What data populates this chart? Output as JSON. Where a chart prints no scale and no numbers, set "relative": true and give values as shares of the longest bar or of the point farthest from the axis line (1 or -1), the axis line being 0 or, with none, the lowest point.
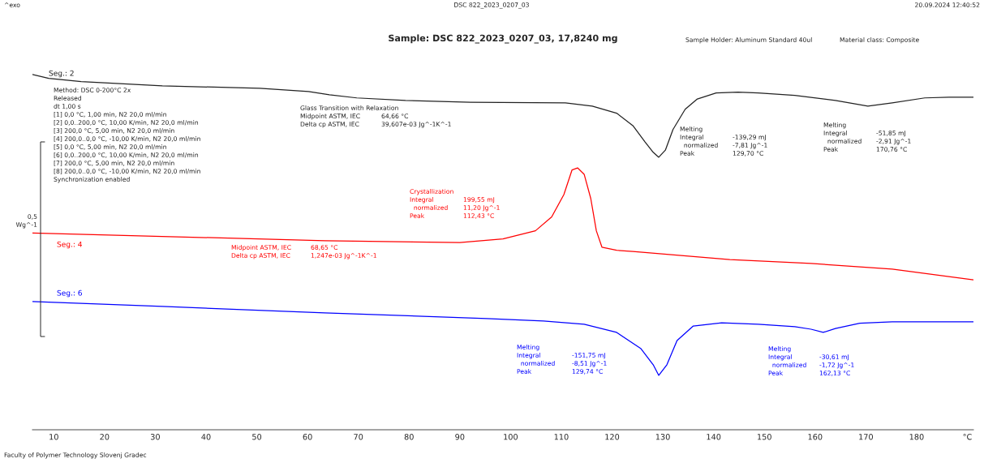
{
  "chart_data": {
    "type": "line",
    "relative": true,
    "title": "Sample: DSC 822_2023_0207_03, 17,8240 mg",
    "xlim": [
      5.8,
      191.2
    ],
    "xticks": [
      10,
      20,
      30,
      40,
      50,
      60,
      70,
      80,
      90,
      100,
      110,
      120,
      130,
      140,
      150,
      160,
      170,
      180,
      {
        "value": 190,
        "label": "°C"
      }
    ],
    "grid": false,
    "legend": false,
    "marker": "none",
    "line_style": "solid",
    "series": [
      {
        "name": "Seg.: 2",
        "color": "#222222",
        "x": [
          5.8,
          9.0,
          15.4,
          31.4,
          50.6,
          60.2,
          64.3,
          69.7,
          79.3,
          92.1,
          110.8,
          116.1,
          120.9,
          124.1,
          126.5,
          128.1,
          129.2,
          130.5,
          132.0,
          134.4,
          136.8,
          140.5,
          144.8,
          148.8,
          156.0,
          164.0,
          170.4,
          175.2,
          181.6,
          186.4,
          191.2
        ],
        "values": [
          1.0,
          0.989,
          0.98,
          0.968,
          0.961,
          0.952,
          0.943,
          0.934,
          0.927,
          0.922,
          0.92,
          0.911,
          0.891,
          0.856,
          0.81,
          0.781,
          0.767,
          0.787,
          0.845,
          0.902,
          0.931,
          0.948,
          0.95,
          0.948,
          0.941,
          0.927,
          0.911,
          0.92,
          0.934,
          0.936,
          0.936
        ]
      },
      {
        "name": "Seg.: 4",
        "color": "#ff0000",
        "x": [
          5.8,
          63.4,
          90.0,
          98.5,
          104.9,
          108.1,
          110.5,
          112.1,
          113.2,
          114.5,
          115.8,
          116.9,
          118.0,
          120.9,
          124.1,
          143.2,
          159.2,
          175.2,
          191.2
        ],
        "values": [
          0.554,
          0.532,
          0.527,
          0.537,
          0.56,
          0.599,
          0.662,
          0.731,
          0.737,
          0.719,
          0.651,
          0.56,
          0.514,
          0.505,
          0.502,
          0.479,
          0.468,
          0.452,
          0.422
        ]
      },
      {
        "name": "Seg.: 6",
        "color": "#0000ff",
        "x": [
          5.8,
          31.4,
          63.4,
          95.3,
          106.5,
          114.5,
          120.9,
          125.7,
          128.1,
          129.2,
          130.8,
          132.8,
          136.0,
          141.6,
          148.8,
          156.0,
          159.2,
          161.6,
          164.0,
          168.8,
          175.2,
          191.2
        ],
        "values": [
          0.361,
          0.347,
          0.329,
          0.313,
          0.306,
          0.297,
          0.274,
          0.228,
          0.183,
          0.153,
          0.183,
          0.251,
          0.292,
          0.301,
          0.297,
          0.29,
          0.283,
          0.274,
          0.285,
          0.3,
          0.304,
          0.304
        ]
      }
    ],
    "annotations": [
      "^exo",
      "DSC 822_2023_0207_03",
      "20.09.2024 12:40:52",
      "Sample Holder: Aluminum Standard 40ul",
      "Material class: Composite",
      "Method: DSC 0-200°C 2x\nReleased\ndt 1,00 s\n[1] 0,0 °C, 1,00 min, N2 20,0 ml/min\n[2] 0,0..200,0 °C, 10,00 K/min, N2 20,0 ml/min\n[3] 200,0 °C, 5,00 min, N2 20,0 ml/min\n[4] 200,0..0,0 °C, -10,00 K/min, N2 20,0 ml/min\n[5] 0,0 °C, 5,00 min, N2 20,0 ml/min\n[6] 0,0..200,0 °C, 10,00 K/min, N2 20,0 ml/min\n[7] 200,0 °C, 5,00 min, N2 20,0 ml/min\n[8] 200,0..0,0 °C, -10,00 K/min, N2 20,0 ml/min\nSynchronization enabled",
      "Glass Transition with Relaxation\nMidpoint ASTM, IEC\nDelta cp ASTM, IEC",
      "\n64,66 °C\n39,607e-03 Jg^-1K^-1",
      "Melting\nIntegral\n  normalized\nPeak",
      "\n-139,29 mJ\n-7,81 Jg^-1\n129,70 °C",
      "Melting\nIntegral\n  normalized\nPeak",
      "\n-51,85 mJ\n-2,91 Jg^-1\n170,76 °C",
      "Crystallization\nIntegral\n  normalized\nPeak",
      "\n199,55 mJ\n11,20 Jg^-1\n112,43 °C",
      "Midpoint ASTM, IEC\nDelta cp ASTM, IEC",
      "68,65 °C\n1,247e-03 Jg^-1K^-1",
      "Melting\nIntegral\n  normalized\nPeak",
      "\n-151,75 mJ\n-8,51 Jg^-1\n129,74 °C",
      "Melting\nIntegral\n  normalized\nPeak",
      "\n-30,61 mJ\n-1,72 Jg^-1\n162,13 °C",
      "0,5\nWg^-1",
      "Faculty of Polymer Technology Slovenj Gradec"
    ]
  }
}
